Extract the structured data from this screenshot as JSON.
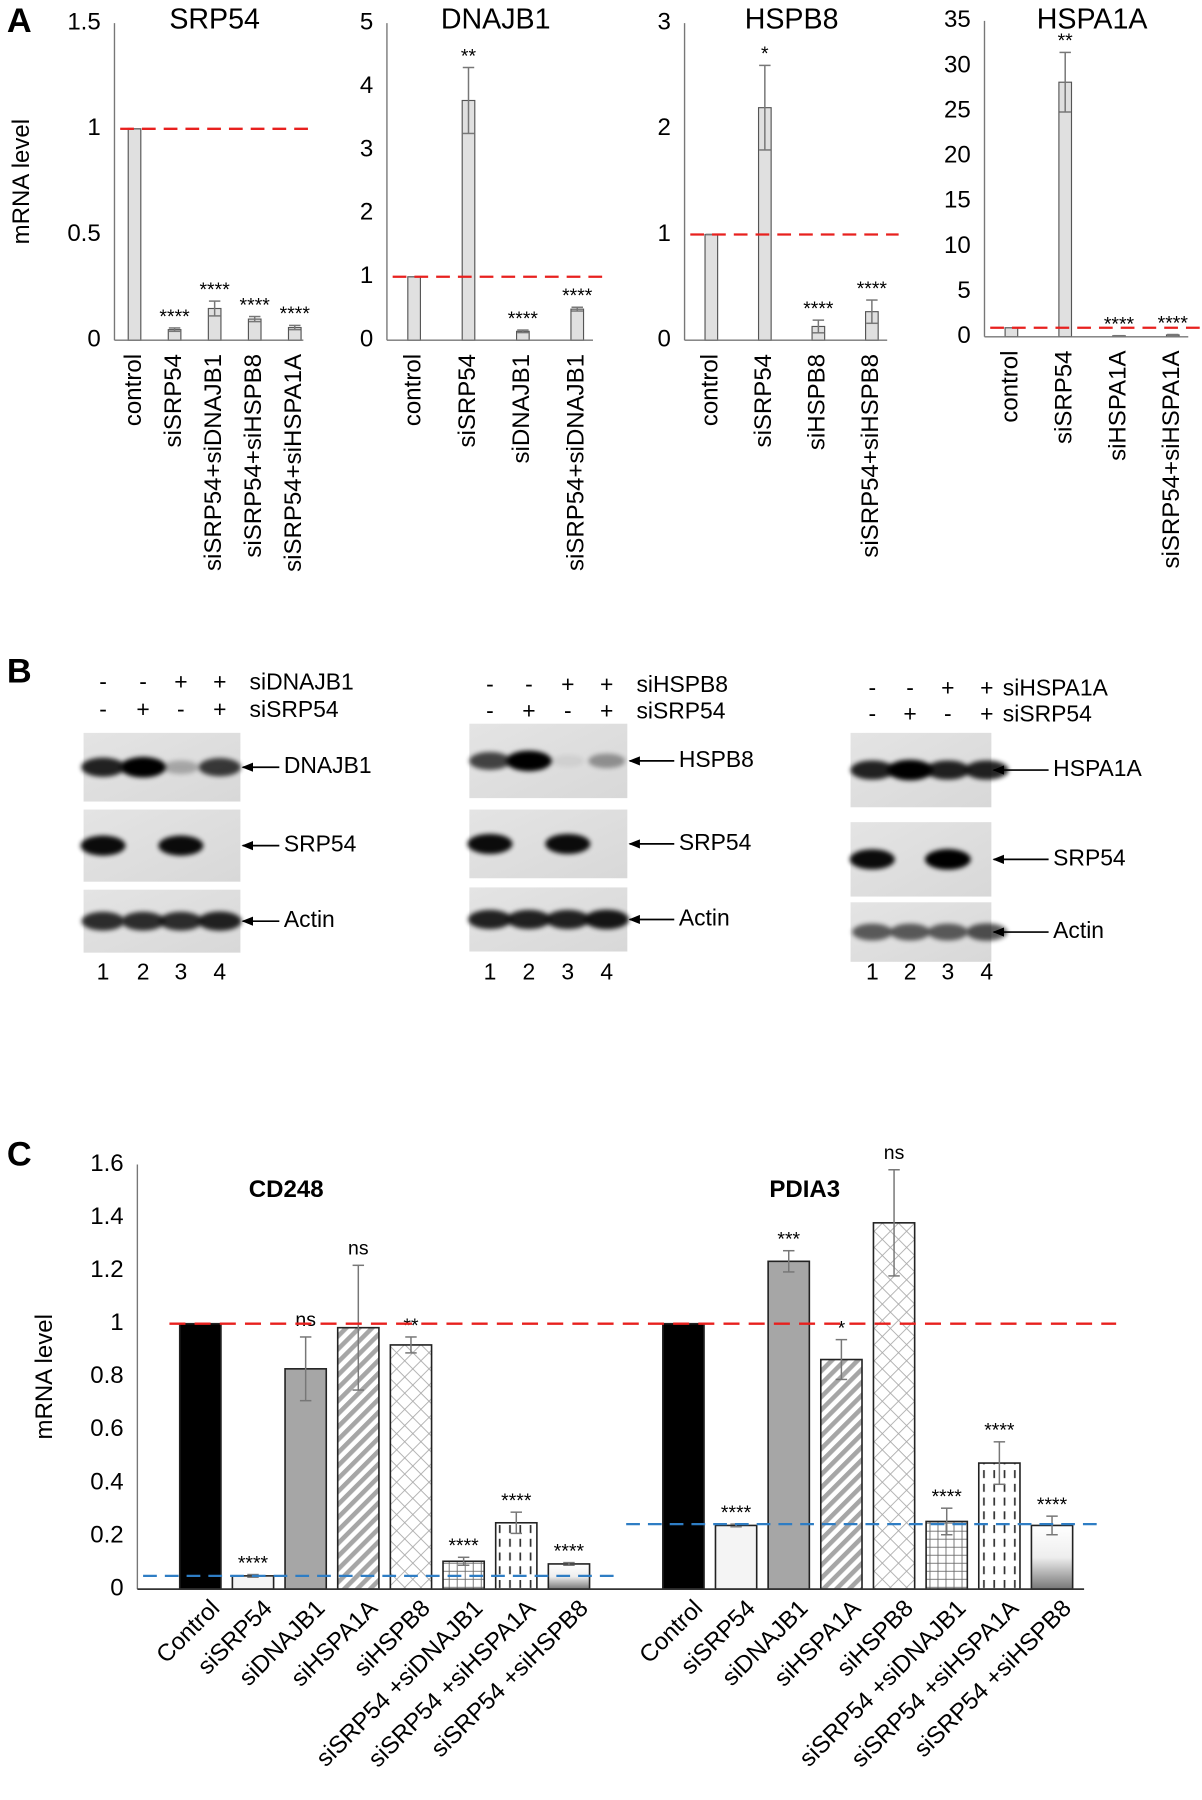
{
  "panel_labels": [
    "A",
    "B",
    "C"
  ],
  "chart_data": [
    {
      "type": "bar",
      "title": "SRP54",
      "ylabel": "mRNA level",
      "categories": [
        "control",
        "siSRP54",
        "siSRP54+siDNAJB1",
        "siSRP54+siHSPB8",
        "siSRP54+siHSPA1A"
      ],
      "values": [
        1,
        0.05,
        0.15,
        0.1,
        0.06
      ],
      "errors": [
        0,
        0.008,
        0.035,
        0.012,
        0.01
      ],
      "significance": [
        null,
        "****",
        "****",
        "****",
        "****"
      ],
      "color": "#e0e0e0",
      "reference_line": 1,
      "reference_color": "#e8201e",
      "ylim": [
        0,
        1.5
      ],
      "yticks": [
        0,
        0.5,
        1,
        1.5
      ]
    },
    {
      "type": "bar",
      "title": "DNAJB1",
      "categories": [
        "control",
        "siSRP54",
        "siDNAJB1",
        "siSRP54+siDNAJB1"
      ],
      "values": [
        1,
        3.78,
        0.14,
        0.49
      ],
      "errors": [
        0,
        0.52,
        0.02,
        0.03
      ],
      "significance": [
        null,
        "**",
        "****",
        "****"
      ],
      "color": "#e0e0e0",
      "reference_line": 1,
      "reference_color": "#e8201e",
      "ylim": [
        0,
        5
      ],
      "yticks": [
        0,
        1,
        2,
        3,
        4,
        5
      ]
    },
    {
      "type": "bar",
      "title": "HSPB8",
      "categories": [
        "control",
        "siSRP54",
        "siHSPB8",
        "siSRP54+siHSPB8"
      ],
      "values": [
        1,
        2.2,
        0.13,
        0.27
      ],
      "errors": [
        0,
        0.4,
        0.06,
        0.11
      ],
      "significance": [
        null,
        "*",
        "****",
        "****"
      ],
      "color": "#e0e0e0",
      "reference_line": 1,
      "reference_color": "#e8201e",
      "ylim": [
        0,
        3
      ],
      "yticks": [
        0,
        1,
        2,
        3
      ]
    },
    {
      "type": "bar",
      "title": "HSPA1A",
      "categories": [
        "control",
        "siSRP54",
        "siHSPA1A",
        "siSRP54+siHSPA1A"
      ],
      "values": [
        1,
        28.2,
        0.1,
        0.2
      ],
      "errors": [
        0,
        3.3,
        0.02,
        0.05
      ],
      "significance": [
        null,
        "**",
        "****",
        "****"
      ],
      "color": "#e0e0e0",
      "reference_line": 1,
      "reference_color": "#e8201e",
      "ylim": [
        0,
        35
      ],
      "yticks": [
        0,
        5,
        10,
        15,
        20,
        25,
        30,
        35
      ]
    },
    {
      "type": "grouped-bar",
      "ylabel": "mRNA level",
      "ylim": [
        0,
        1.6
      ],
      "yticks": [
        0,
        0.2,
        0.4,
        0.6,
        0.8,
        1,
        1.2,
        1.4,
        1.6
      ],
      "reference_line": 1,
      "reference_color": "#e8201e",
      "baseline_color": "#2e7dc4",
      "bar_styles": [
        "black",
        "white",
        "gray",
        "stripes",
        "crosshatch",
        "grid",
        "dashes",
        "gradient"
      ],
      "groups": [
        {
          "title": "CD248",
          "categories": [
            "Control",
            "siSRP54",
            "siDNAJB1",
            "siHSPA1A",
            "siHSPB8",
            "siSRP54 +siDNAJB1",
            "siSRP54 +siHSPA1A",
            "siSRP54 +siHSPB8"
          ],
          "values": [
            1,
            0.05,
            0.83,
            0.985,
            0.92,
            0.105,
            0.25,
            0.095
          ],
          "errors": [
            0,
            0.005,
            0.12,
            0.235,
            0.03,
            0.015,
            0.04,
            0.005
          ],
          "significance": [
            null,
            "****",
            "ns",
            "ns",
            "**",
            "****",
            "****",
            "****"
          ],
          "baseline": 0.05
        },
        {
          "title": "PDIA3",
          "categories": [
            "Control",
            "siSRP54",
            "siDNAJB1",
            "siHSPA1A",
            "siHSPB8",
            "siSRP54 +siDNAJB1",
            "siSRP54 +siHSPA1A",
            "siSRP54 +siHSPB8"
          ],
          "values": [
            1,
            0.24,
            1.235,
            0.865,
            1.38,
            0.255,
            0.475,
            0.24
          ],
          "errors": [
            0,
            0.005,
            0.04,
            0.075,
            0.2,
            0.05,
            0.08,
            0.035
          ],
          "significance": [
            null,
            "****",
            "***",
            "*",
            "ns",
            "****",
            "****",
            "****"
          ],
          "baseline": 0.245
        }
      ]
    }
  ],
  "blots": [
    {
      "treatments": [
        {
          "name": "siDNAJB1",
          "signs": [
            "-",
            "-",
            "+",
            "+"
          ]
        },
        {
          "name": "siSRP54",
          "signs": [
            "-",
            "+",
            "-",
            "+"
          ]
        }
      ],
      "bands": [
        "DNAJB1",
        "SRP54",
        "Actin"
      ],
      "lanes": [
        "1",
        "2",
        "3",
        "4"
      ]
    },
    {
      "treatments": [
        {
          "name": "siHSPB8",
          "signs": [
            "-",
            "-",
            "+",
            "+"
          ]
        },
        {
          "name": "siSRP54",
          "signs": [
            "-",
            "+",
            "-",
            "+"
          ]
        }
      ],
      "bands": [
        "HSPB8",
        "SRP54",
        "Actin"
      ],
      "lanes": [
        "1",
        "2",
        "3",
        "4"
      ]
    },
    {
      "treatments": [
        {
          "name": "siHSPA1A",
          "signs": [
            "-",
            "-",
            "+",
            "+"
          ]
        },
        {
          "name": "siSRP54",
          "signs": [
            "-",
            "+",
            "-",
            "+"
          ]
        }
      ],
      "bands": [
        "HSPA1A",
        "SRP54",
        "Actin"
      ],
      "lanes": [
        "1",
        "2",
        "3",
        "4"
      ]
    }
  ]
}
